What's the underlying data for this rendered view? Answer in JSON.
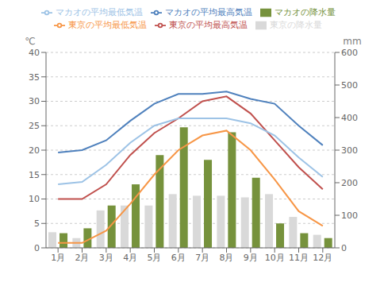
{
  "chart_data": {
    "type": "bar",
    "categories": [
      "1月",
      "2月",
      "3月",
      "4月",
      "5月",
      "6月",
      "7月",
      "8月",
      "9月",
      "10月",
      "11月",
      "12月"
    ],
    "series": [
      {
        "name": "東京の降水量",
        "type": "bar",
        "axis": "y2",
        "color": "#d9d9d9",
        "values": [
          48,
          30,
          115,
          130,
          130,
          165,
          160,
          160,
          155,
          165,
          95,
          40
        ]
      },
      {
        "name": "マカオの降水量",
        "type": "bar",
        "axis": "y2",
        "color": "#76923c",
        "values": [
          45,
          60,
          130,
          195,
          285,
          370,
          270,
          355,
          215,
          75,
          45,
          30
        ]
      },
      {
        "name": "東京の平均最高気温",
        "type": "line",
        "color": "#c0504d",
        "values": [
          10.0,
          10.0,
          13.0,
          19.0,
          23.5,
          26.5,
          30.0,
          31.0,
          27.5,
          22.0,
          16.5,
          12.0
        ]
      },
      {
        "name": "東京の平均最低気温",
        "type": "line",
        "color": "#f79646",
        "values": [
          1.0,
          1.0,
          3.5,
          9.0,
          15.0,
          20.0,
          23.0,
          24.0,
          20.0,
          14.0,
          7.5,
          4.5
        ]
      },
      {
        "name": "マカオの平均最高気温",
        "type": "line",
        "color": "#4f81bd",
        "values": [
          19.5,
          20.0,
          22.0,
          26.0,
          29.5,
          31.5,
          31.5,
          32.0,
          30.5,
          29.5,
          25.0,
          21.0
        ]
      },
      {
        "name": "マカオの平均最低気温",
        "type": "line",
        "color": "#9dc3e6",
        "values": [
          13.0,
          13.5,
          17.0,
          21.5,
          25.0,
          26.5,
          26.5,
          26.5,
          25.5,
          23.0,
          18.5,
          14.5
        ]
      }
    ],
    "ylim": [
      0,
      40
    ],
    "yticks": [
      0,
      5,
      10,
      15,
      20,
      25,
      30,
      35,
      40
    ],
    "y2lim": [
      0,
      600
    ],
    "y2ticks": [
      0,
      100,
      200,
      300,
      400,
      500,
      600
    ],
    "ylabel": "℃",
    "y2label": "mm",
    "grid": "y",
    "legend": "top"
  }
}
